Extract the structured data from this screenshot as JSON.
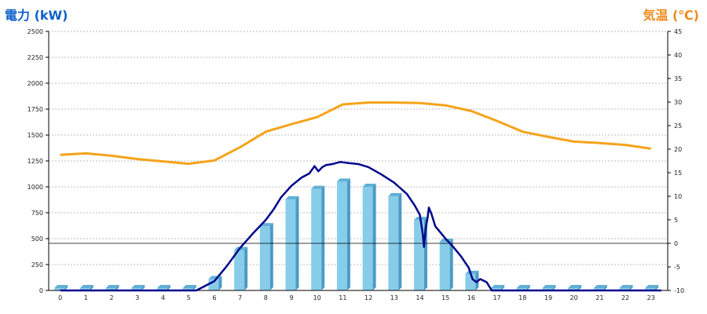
{
  "left_axis_label": "電力 (kW)",
  "right_axis_label": "気温 (℃)",
  "chart_data": {
    "type": "bar",
    "categories": [
      "0",
      "1",
      "2",
      "3",
      "4",
      "5",
      "6",
      "7",
      "8",
      "9",
      "10",
      "11",
      "12",
      "13",
      "14",
      "15",
      "16",
      "17",
      "18",
      "19",
      "20",
      "21",
      "22",
      "23"
    ],
    "y_left": {
      "label": "電力 (kW)",
      "range": [
        0,
        2500
      ],
      "ticks": [
        0,
        250,
        500,
        750,
        1000,
        1250,
        1500,
        1750,
        2000,
        2250,
        2500
      ]
    },
    "y_right": {
      "label": "気温 (℃)",
      "range": [
        -10,
        45
      ],
      "ticks": [
        -10,
        -5,
        0,
        5,
        10,
        15,
        20,
        25,
        30,
        35,
        40,
        45
      ]
    },
    "grid": true,
    "bars": {
      "color": "#87cde9",
      "values": [
        0,
        0,
        0,
        0,
        0,
        0,
        110,
        390,
        620,
        880,
        980,
        1050,
        1000,
        910,
        680,
        470,
        160,
        0,
        0,
        0,
        0,
        0,
        0,
        0
      ]
    },
    "power_line": {
      "color": "#00068c",
      "points": [
        [
          0,
          0
        ],
        [
          5.3,
          0
        ],
        [
          6,
          90
        ],
        [
          6.5,
          240
        ],
        [
          7,
          410
        ],
        [
          7.5,
          550
        ],
        [
          8,
          680
        ],
        [
          8.3,
          780
        ],
        [
          8.6,
          900
        ],
        [
          9,
          1010
        ],
        [
          9.4,
          1090
        ],
        [
          9.7,
          1130
        ],
        [
          9.9,
          1200
        ],
        [
          10.05,
          1150
        ],
        [
          10.2,
          1190
        ],
        [
          10.35,
          1210
        ],
        [
          10.6,
          1220
        ],
        [
          10.9,
          1240
        ],
        [
          11.2,
          1230
        ],
        [
          11.6,
          1220
        ],
        [
          12,
          1190
        ],
        [
          12.5,
          1120
        ],
        [
          13,
          1040
        ],
        [
          13.5,
          930
        ],
        [
          13.8,
          820
        ],
        [
          14,
          730
        ],
        [
          14.08,
          600
        ],
        [
          14.12,
          530
        ],
        [
          14.16,
          420
        ],
        [
          14.22,
          590
        ],
        [
          14.3,
          700
        ],
        [
          14.35,
          800
        ],
        [
          14.45,
          740
        ],
        [
          14.6,
          620
        ],
        [
          15,
          500
        ],
        [
          15.3,
          420
        ],
        [
          15.6,
          330
        ],
        [
          15.9,
          220
        ],
        [
          16.05,
          110
        ],
        [
          16.2,
          80
        ],
        [
          16.35,
          110
        ],
        [
          16.6,
          80
        ],
        [
          16.8,
          0
        ],
        [
          23.4,
          0
        ]
      ]
    },
    "temperature_line": {
      "color": "#f5a31a",
      "points": [
        [
          0,
          18.8
        ],
        [
          1,
          19.1
        ],
        [
          2,
          18.6
        ],
        [
          3,
          17.9
        ],
        [
          4,
          17.4
        ],
        [
          5,
          16.9
        ],
        [
          6,
          17.6
        ],
        [
          7,
          20.4
        ],
        [
          8,
          23.7
        ],
        [
          9,
          25.3
        ],
        [
          10,
          26.8
        ],
        [
          11,
          29.5
        ],
        [
          12,
          29.9
        ],
        [
          13,
          29.9
        ],
        [
          14,
          29.8
        ],
        [
          15,
          29.3
        ],
        [
          16,
          28.1
        ],
        [
          17,
          26.0
        ],
        [
          18,
          23.7
        ],
        [
          19,
          22.6
        ],
        [
          20,
          21.6
        ],
        [
          21,
          21.3
        ],
        [
          22,
          20.9
        ],
        [
          23,
          20.1
        ]
      ]
    }
  }
}
